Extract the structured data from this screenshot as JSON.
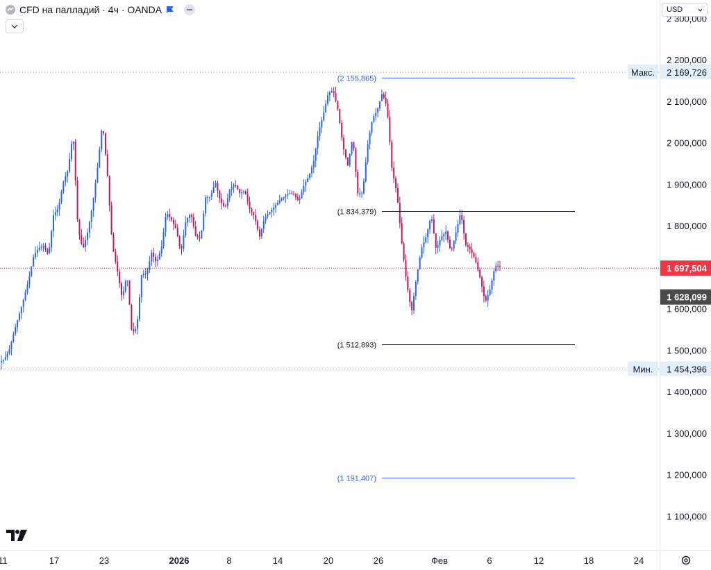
{
  "header": {
    "symbol_title": "CFD на палладий · 4ч · OANDA"
  },
  "currency_selector": {
    "label": "USD"
  },
  "colors": {
    "up_candle": "#2962ff",
    "down_candle": "#c2185b",
    "last_price": "#f23645",
    "prev_close": "#4a4a4a",
    "fib_line_blue": "#2962ff",
    "fib_line_dark": "#131722",
    "max_min_label_bg": "#e3effd"
  },
  "icons": [
    "symbol-icon",
    "flag-icon",
    "chevron-down-icon",
    "tradingview-logo-icon",
    "settings-icon"
  ],
  "chart_data": {
    "type": "candlestick",
    "title": "CFD на палладий · 4ч · OANDA",
    "currency": "USD",
    "ylim": [
      1030000,
      2260000
    ],
    "y_ticks": [
      {
        "value": 1100000,
        "label": "1 100,000"
      },
      {
        "value": 1200000,
        "label": "1 200,000"
      },
      {
        "value": 1300000,
        "label": "1 300,000"
      },
      {
        "value": 1400000,
        "label": "1 400,000"
      },
      {
        "value": 1500000,
        "label": "1 500,000"
      },
      {
        "value": 1600000,
        "label": "1 600,000"
      },
      {
        "value": 1800000,
        "label": "1 800,000"
      },
      {
        "value": 1900000,
        "label": "1 900,000"
      },
      {
        "value": 2000000,
        "label": "2 000,000"
      },
      {
        "value": 2100000,
        "label": "2 100,000"
      },
      {
        "value": 2200000,
        "label": "2 200,000"
      }
    ],
    "x_ticks": [
      "11",
      "17",
      "23",
      "2026",
      "8",
      "14",
      "20",
      "26",
      "Фев",
      "6",
      "12",
      "18",
      "24"
    ],
    "price_labels": {
      "max": {
        "text": "Макс.",
        "value": 2169726,
        "label": "2 169,726"
      },
      "min": {
        "text": "Мин.",
        "value": 1454396,
        "label": "1 454,396"
      },
      "last": {
        "value": 1697504,
        "label": "1 697,504"
      },
      "prev_close": {
        "value": 1628099,
        "label": "1 628,099"
      }
    },
    "fib_levels": [
      {
        "value": 2155865,
        "label": "(2 155,865)",
        "color": "blue"
      },
      {
        "value": 1834379,
        "label": "(1 834,379)",
        "color": "dark"
      },
      {
        "value": 1512893,
        "label": "(1 512,893)",
        "color": "dark"
      },
      {
        "value": 1191407,
        "label": "(1 191,407)",
        "color": "blue"
      }
    ],
    "price_path": [
      1470000,
      1478000,
      1500000,
      1545000,
      1585000,
      1625000,
      1672000,
      1728000,
      1746000,
      1752000,
      1728000,
      1825000,
      1842000,
      1904000,
      1935000,
      2025000,
      1795000,
      1742000,
      1785000,
      1852000,
      1940000,
      2049000,
      1925000,
      1752000,
      1694000,
      1625000,
      1684000,
      1540000,
      1555000,
      1685000,
      1682000,
      1735000,
      1710000,
      1746000,
      1832000,
      1816000,
      1792000,
      1735000,
      1812000,
      1830000,
      1775000,
      1768000,
      1868000,
      1870000,
      1906000,
      1860000,
      1842000,
      1890000,
      1900000,
      1878000,
      1884000,
      1840000,
      1822000,
      1772000,
      1818000,
      1832000,
      1845000,
      1860000,
      1870000,
      1878000,
      1876000,
      1858000,
      1896000,
      1918000,
      1952000,
      2025000,
      2068000,
      2119000,
      2126000,
      2079000,
      1992000,
      1945000,
      2015000,
      1878000,
      1878000,
      1992000,
      2058000,
      2078000,
      2120000,
      2085000,
      1935000,
      1878000,
      1758000,
      1660000,
      1592000,
      1676000,
      1745000,
      1775000,
      1826000,
      1742000,
      1772000,
      1786000,
      1735000,
      1782000,
      1833000,
      1754000,
      1742000,
      1716000,
      1672000,
      1615000,
      1647000,
      1703000,
      1702000
    ]
  }
}
